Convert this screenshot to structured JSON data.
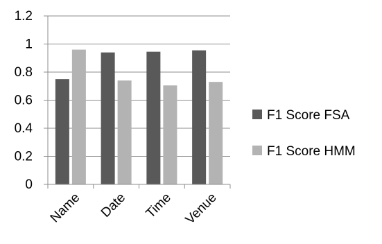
{
  "chart_data": {
    "type": "bar",
    "title": "",
    "xlabel": "",
    "ylabel": "",
    "categories": [
      "Name",
      "Date",
      "Time",
      "Venue"
    ],
    "series": [
      {
        "name": "F1 Score FSA",
        "color": "#595959",
        "values": [
          0.75,
          0.94,
          0.945,
          0.955
        ]
      },
      {
        "name": "F1 Score HMM",
        "color": "#b3b3b3",
        "values": [
          0.96,
          0.74,
          0.705,
          0.73
        ]
      }
    ],
    "ylim": [
      0,
      1.2
    ],
    "yticks": [
      0,
      0.2,
      0.4,
      0.6,
      0.8,
      1,
      1.2
    ],
    "ytick_labels": [
      "0",
      "0.2",
      "0.4",
      "0.6",
      "0.8",
      "1",
      "1.2"
    ],
    "grid": true,
    "legend_position": "right"
  }
}
